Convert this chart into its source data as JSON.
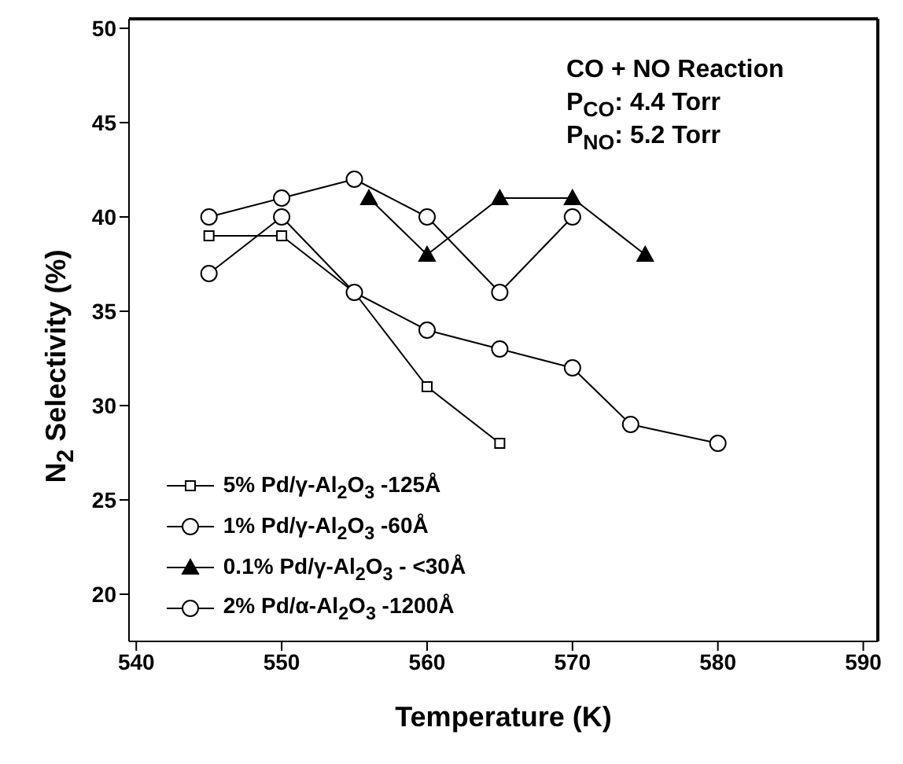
{
  "chart_data": {
    "type": "line",
    "xlabel": "Temperature (K)",
    "ylabel": "N$_{2}$ Selectivity (%)",
    "xlim": [
      539.5,
      591
    ],
    "xticks": [
      540,
      550,
      560,
      570,
      580,
      590
    ],
    "ylim": [
      17.5,
      50.5
    ],
    "yticks": [
      20,
      25,
      30,
      35,
      40,
      45,
      50
    ],
    "annotations": [
      "CO + NO Reaction",
      "P$_{CO}$: 4.4 Torr",
      "P$_{NO}$: 5.2 Torr"
    ],
    "legend": "bottom left",
    "series": [
      {
        "name": "5% Pd/γ-Al$_{2}$O$_{3}$ -125Å",
        "color": "#000000",
        "marker": "square",
        "x": [
          545,
          550,
          555,
          560,
          565
        ],
        "values": [
          39,
          39,
          36,
          31,
          28
        ]
      },
      {
        "name": "1% Pd/γ-Al$_{2}$O$_{3}$ -60Å",
        "color": "#000000",
        "marker": "circle",
        "x": [
          545,
          550,
          555,
          560,
          565,
          570,
          574,
          580
        ],
        "values": [
          37,
          40,
          36,
          34,
          33,
          32,
          29,
          28
        ]
      },
      {
        "name": "0.1% Pd/γ-Al$_{2}$O$_{3}$ - <30Å",
        "color": "#000000",
        "marker": "triangle",
        "x": [
          556,
          560,
          565,
          570,
          575
        ],
        "values": [
          41,
          38,
          41,
          41,
          38
        ]
      },
      {
        "name": "2% Pd/α-Al$_{2}$O$_{3}$ -1200Å",
        "color": "#000000",
        "marker": "circle",
        "x": [
          545,
          550,
          555,
          560,
          565,
          570
        ],
        "values": [
          40,
          41,
          42,
          40,
          36,
          40
        ]
      }
    ]
  }
}
